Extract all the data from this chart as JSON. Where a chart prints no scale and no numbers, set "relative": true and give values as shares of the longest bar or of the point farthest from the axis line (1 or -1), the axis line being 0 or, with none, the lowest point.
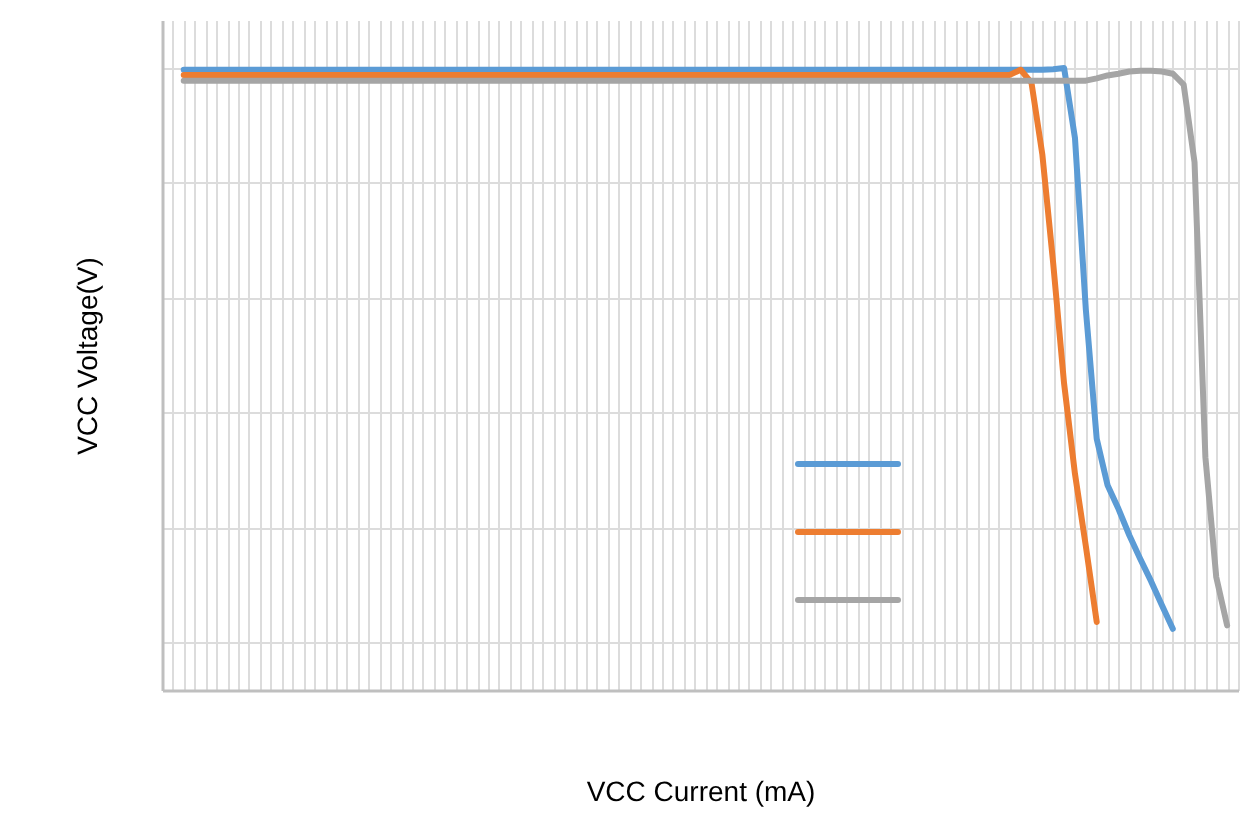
{
  "chart_data": {
    "type": "line",
    "xlabel": "VCC Current (mA)",
    "ylabel": "VCC Voltage(V)",
    "relative": true,
    "grid": true,
    "categories": [
      null,
      null,
      null,
      null,
      null,
      null,
      null,
      null,
      null,
      null,
      null,
      null,
      null,
      null,
      null,
      null,
      null,
      null,
      null,
      null,
      null,
      null,
      null,
      null,
      null,
      null,
      null,
      null,
      null,
      null,
      null,
      null,
      null,
      null,
      null,
      null,
      null,
      null,
      null,
      null,
      null,
      null,
      null,
      null,
      null,
      null,
      null,
      null,
      null,
      null,
      null,
      null,
      null,
      null,
      null,
      null,
      null,
      null,
      null,
      null,
      null,
      null,
      null,
      null,
      null,
      null,
      null,
      null,
      null,
      null,
      null,
      null,
      null,
      null,
      null,
      null,
      null,
      null,
      null,
      null,
      null,
      null,
      null,
      null,
      null,
      null,
      null,
      null,
      null,
      null,
      null,
      null,
      null,
      null,
      null,
      null,
      null,
      null,
      null,
      null
    ],
    "series": [
      {
        "color": "#5b9bd5",
        "values": [
          null,
          null,
          0.997,
          0.997,
          0.997,
          0.997,
          0.997,
          0.997,
          0.997,
          0.997,
          0.997,
          0.997,
          0.997,
          0.997,
          0.997,
          0.997,
          0.997,
          0.997,
          0.997,
          0.997,
          0.997,
          0.997,
          0.997,
          0.997,
          0.997,
          0.997,
          0.997,
          0.997,
          0.997,
          0.997,
          0.997,
          0.997,
          0.997,
          0.997,
          0.997,
          0.997,
          0.997,
          0.997,
          0.997,
          0.997,
          0.997,
          0.997,
          0.997,
          0.997,
          0.997,
          0.997,
          0.997,
          0.997,
          0.997,
          0.997,
          0.997,
          0.997,
          0.997,
          0.997,
          0.997,
          0.997,
          0.997,
          0.997,
          0.997,
          0.997,
          0.997,
          0.997,
          0.997,
          0.997,
          0.997,
          0.997,
          0.997,
          0.997,
          0.997,
          0.997,
          0.997,
          0.997,
          0.997,
          0.997,
          0.997,
          0.997,
          0.997,
          0.997,
          0.997,
          0.997,
          0.997,
          0.997,
          0.998,
          1.0,
          0.878,
          0.579,
          0.354,
          0.273,
          0.232,
          0.186,
          0.145,
          0.106,
          0.064,
          0.023,
          null,
          null,
          null,
          null,
          null,
          null
        ]
      },
      {
        "color": "#ed7d31",
        "values": [
          null,
          null,
          0.988,
          0.988,
          0.988,
          0.988,
          0.988,
          0.988,
          0.988,
          0.988,
          0.988,
          0.988,
          0.988,
          0.988,
          0.988,
          0.988,
          0.988,
          0.988,
          0.988,
          0.988,
          0.988,
          0.988,
          0.988,
          0.988,
          0.988,
          0.988,
          0.988,
          0.988,
          0.988,
          0.988,
          0.988,
          0.988,
          0.988,
          0.988,
          0.988,
          0.988,
          0.988,
          0.988,
          0.988,
          0.988,
          0.988,
          0.988,
          0.988,
          0.988,
          0.988,
          0.988,
          0.988,
          0.988,
          0.988,
          0.988,
          0.988,
          0.988,
          0.988,
          0.988,
          0.988,
          0.988,
          0.988,
          0.988,
          0.988,
          0.988,
          0.988,
          0.988,
          0.988,
          0.988,
          0.988,
          0.988,
          0.988,
          0.988,
          0.988,
          0.988,
          0.988,
          0.988,
          0.988,
          0.988,
          0.988,
          0.988,
          0.988,
          0.988,
          0.988,
          0.997,
          0.974,
          0.849,
          0.659,
          0.45,
          0.293,
          0.167,
          0.035,
          null,
          null,
          null,
          null,
          null,
          null,
          null,
          null,
          null,
          null,
          null,
          null,
          null
        ]
      },
      {
        "color": "#a5a5a5",
        "values": [
          null,
          null,
          0.978,
          0.978,
          0.978,
          0.978,
          0.978,
          0.978,
          0.978,
          0.978,
          0.978,
          0.978,
          0.978,
          0.978,
          0.978,
          0.978,
          0.978,
          0.978,
          0.978,
          0.978,
          0.978,
          0.978,
          0.978,
          0.978,
          0.978,
          0.978,
          0.978,
          0.978,
          0.978,
          0.978,
          0.978,
          0.978,
          0.978,
          0.978,
          0.978,
          0.978,
          0.978,
          0.978,
          0.978,
          0.978,
          0.978,
          0.978,
          0.978,
          0.978,
          0.978,
          0.978,
          0.978,
          0.978,
          0.978,
          0.978,
          0.978,
          0.978,
          0.978,
          0.978,
          0.978,
          0.978,
          0.978,
          0.978,
          0.978,
          0.978,
          0.978,
          0.978,
          0.978,
          0.978,
          0.978,
          0.978,
          0.978,
          0.978,
          0.978,
          0.978,
          0.978,
          0.978,
          0.978,
          0.978,
          0.978,
          0.978,
          0.978,
          0.978,
          0.978,
          0.978,
          0.978,
          0.978,
          0.978,
          0.978,
          0.978,
          0.978,
          0.982,
          0.987,
          0.99,
          0.994,
          0.995,
          0.995,
          0.994,
          0.99,
          0.971,
          0.836,
          0.322,
          0.113,
          0.029,
          null
        ]
      }
    ]
  }
}
